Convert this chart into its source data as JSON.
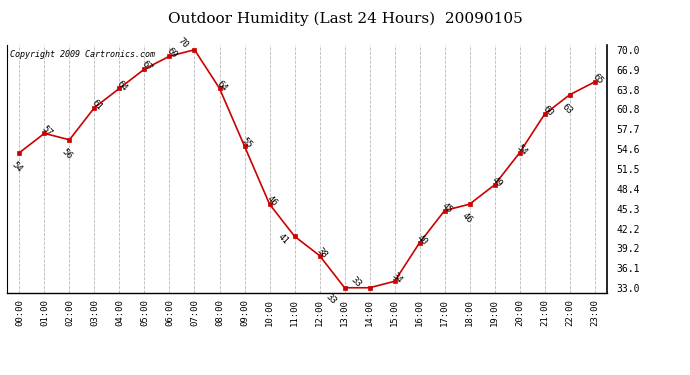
{
  "title": "Outdoor Humidity (Last 24 Hours)  20090105",
  "copyright_text": "Copyright 2009 Cartronics.com",
  "hour_labels": [
    "00:00",
    "01:00",
    "02:00",
    "03:00",
    "04:00",
    "05:00",
    "06:00",
    "07:00",
    "08:00",
    "09:00",
    "10:00",
    "11:00",
    "12:00",
    "13:00",
    "14:00",
    "15:00",
    "16:00",
    "17:00",
    "18:00",
    "19:00",
    "20:00",
    "21:00",
    "22:00",
    "23:00"
  ],
  "x_data": [
    0,
    1,
    2,
    3,
    4,
    5,
    6,
    7,
    8,
    9,
    10,
    11,
    12,
    13,
    14,
    15,
    16,
    17,
    18,
    19,
    20,
    21,
    22,
    23
  ],
  "y_data": [
    54,
    57,
    56,
    61,
    64,
    67,
    69,
    70,
    64,
    55,
    46,
    41,
    38,
    33,
    33,
    34,
    40,
    45,
    46,
    49,
    54,
    60,
    63,
    65
  ],
  "ytick_values": [
    33.0,
    36.1,
    39.2,
    42.2,
    45.3,
    48.4,
    51.5,
    54.6,
    57.7,
    60.8,
    63.8,
    66.9,
    70.0
  ],
  "ylim_min": 33.0,
  "ylim_max": 70.0,
  "line_color": "#cc0000",
  "marker_color": "#cc0000",
  "bg_color": "#ffffff",
  "grid_color": "#b0b0b0",
  "title_fontsize": 11,
  "annot_fontsize": 6.5
}
